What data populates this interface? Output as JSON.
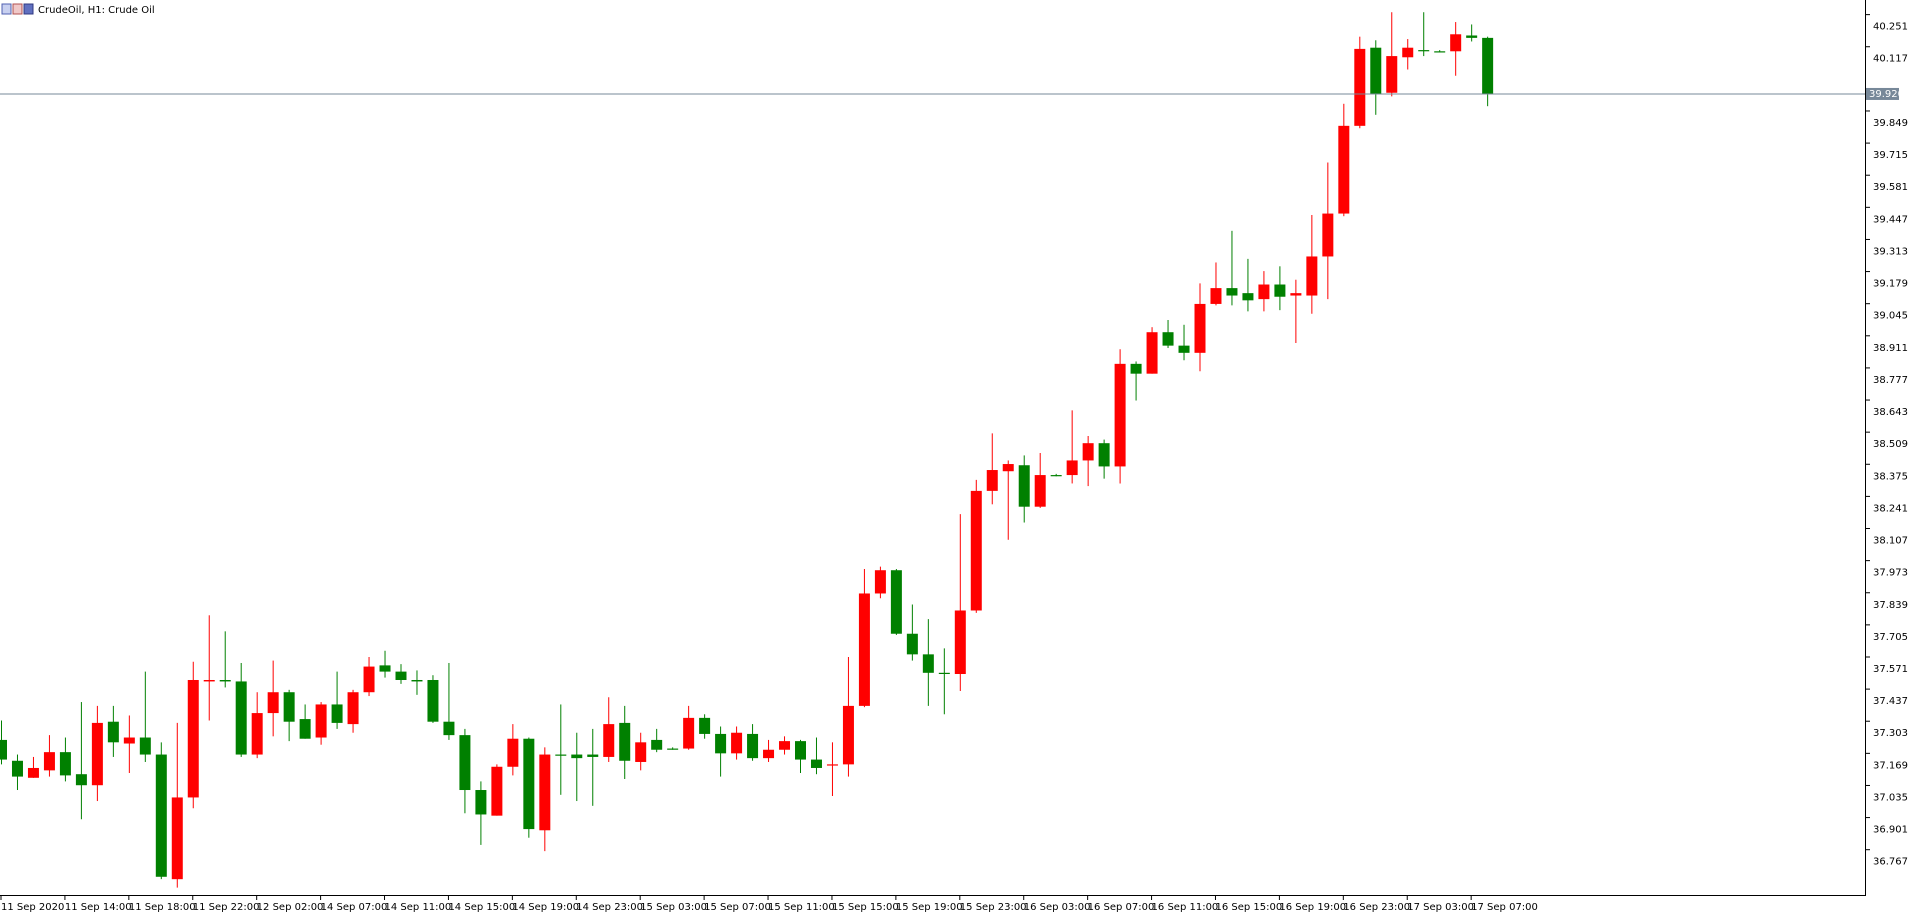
{
  "chart_data": {
    "type": "candlestick",
    "title": "CrudeOil, H1:  Crude Oil",
    "up_color": "#ff0000",
    "down_color": "#008000",
    "categories": [
      "11 Sep 2020",
      null,
      null,
      null,
      "11 Sep 14:00",
      null,
      null,
      null,
      "11 Sep 18:00",
      null,
      null,
      null,
      "11 Sep 22:00",
      null,
      null,
      null,
      "12 Sep 02:00",
      null,
      null,
      null,
      "14 Sep 07:00",
      null,
      null,
      null,
      "14 Sep 11:00",
      null,
      null,
      null,
      "14 Sep 15:00",
      null,
      null,
      null,
      "14 Sep 19:00",
      null,
      null,
      null,
      "14 Sep 23:00",
      null,
      null,
      null,
      "15 Sep 03:00",
      null,
      null,
      null,
      "15 Sep 07:00",
      null,
      null,
      null,
      "15 Sep 11:00",
      null,
      null,
      null,
      "15 Sep 15:00",
      null,
      null,
      null,
      "15 Sep 19:00",
      null,
      null,
      null,
      "15 Sep 23:00",
      null,
      null,
      null,
      "16 Sep 03:00",
      null,
      null,
      null,
      "16 Sep 07:00",
      null,
      null,
      null,
      "16 Sep 11:00",
      null,
      null,
      null,
      "16 Sep 15:00",
      null,
      null,
      null,
      "16 Sep 19:00",
      null,
      null,
      null,
      "16 Sep 23:00",
      null,
      null,
      null,
      "17 Sep 03:00",
      null,
      null,
      null,
      "17 Sep 07:00",
      null
    ],
    "open": [
      37.225,
      37.138,
      37.067,
      37.098,
      37.174,
      37.082,
      37.036,
      37.301,
      37.21,
      37.235,
      37.164,
      36.644,
      36.985,
      37.469,
      37.475,
      37.469,
      37.164,
      37.337,
      37.424,
      37.312,
      37.235,
      37.373,
      37.291,
      37.424,
      37.536,
      37.51,
      37.475,
      37.475,
      37.301,
      37.245,
      37.016,
      36.909,
      37.113,
      37.23,
      36.848,
      37.164,
      37.164,
      37.164,
      37.154,
      37.296,
      37.133,
      37.225,
      37.189,
      37.189,
      37.317,
      37.25,
      37.169,
      37.25,
      37.149,
      37.184,
      37.22,
      37.143,
      37.118,
      37.123,
      37.367,
      37.836,
      37.933,
      37.668,
      37.582,
      37.505,
      37.5,
      37.765,
      38.264,
      38.346,
      38.371,
      38.198,
      38.33,
      38.33,
      38.391,
      38.463,
      38.366,
      38.794,
      38.753,
      38.926,
      38.87,
      38.84,
      39.044,
      39.11,
      39.089,
      39.064,
      39.125,
      39.079,
      39.079,
      39.242,
      39.421,
      39.787,
      40.113,
      39.925,
      40.073,
      40.103,
      40.098,
      40.098,
      40.164,
      40.154
    ],
    "high": [
      37.306,
      37.164,
      37.154,
      37.245,
      37.235,
      37.383,
      37.367,
      37.367,
      37.327,
      37.51,
      37.215,
      37.296,
      37.551,
      37.745,
      37.678,
      37.546,
      37.424,
      37.556,
      37.434,
      37.373,
      37.383,
      37.51,
      37.434,
      37.571,
      37.597,
      37.541,
      37.515,
      37.495,
      37.546,
      37.271,
      37.052,
      37.123,
      37.291,
      37.235,
      37.194,
      37.373,
      37.255,
      37.271,
      37.403,
      37.367,
      37.255,
      37.271,
      37.194,
      37.367,
      37.332,
      37.281,
      37.281,
      37.291,
      37.225,
      37.24,
      37.225,
      37.235,
      37.215,
      37.571,
      37.938,
      37.948,
      37.938,
      37.79,
      37.729,
      37.607,
      38.167,
      38.31,
      38.504,
      38.391,
      38.412,
      38.422,
      38.335,
      38.6,
      38.493,
      38.478,
      38.855,
      38.804,
      38.947,
      38.977,
      38.957,
      39.13,
      39.217,
      39.349,
      39.232,
      39.181,
      39.201,
      39.145,
      39.415,
      39.634,
      39.879,
      40.159,
      40.144,
      40.261,
      40.149,
      40.261,
      40.103,
      40.22,
      40.21,
      40.159
    ],
    "low": [
      37.123,
      37.016,
      37.067,
      37.072,
      37.052,
      36.894,
      36.97,
      37.154,
      37.087,
      37.133,
      36.644,
      36.609,
      36.94,
      37.306,
      37.444,
      37.154,
      37.149,
      37.24,
      37.22,
      37.23,
      37.205,
      37.271,
      37.255,
      37.408,
      37.485,
      37.459,
      37.413,
      37.296,
      37.225,
      36.919,
      36.787,
      36.909,
      37.077,
      36.817,
      36.761,
      36.996,
      36.97,
      36.95,
      37.133,
      37.062,
      37.098,
      37.174,
      37.184,
      37.184,
      37.23,
      37.072,
      37.143,
      37.138,
      37.133,
      37.164,
      37.087,
      37.082,
      36.991,
      37.072,
      37.362,
      37.816,
      37.663,
      37.556,
      37.367,
      37.332,
      37.429,
      37.755,
      38.208,
      38.06,
      38.132,
      38.193,
      38.325,
      38.295,
      38.284,
      38.315,
      38.295,
      38.641,
      38.753,
      38.86,
      38.809,
      38.763,
      39.038,
      39.038,
      39.013,
      39.013,
      39.018,
      38.881,
      39.003,
      39.064,
      39.41,
      39.777,
      39.833,
      39.91,
      40.022,
      40.078,
      40.093,
      39.996,
      40.139,
      39.869
    ],
    "close": [
      37.143,
      37.072,
      37.108,
      37.174,
      37.077,
      37.036,
      37.296,
      37.215,
      37.235,
      37.164,
      36.654,
      36.985,
      37.475,
      37.475,
      37.469,
      37.164,
      37.337,
      37.424,
      37.301,
      37.23,
      37.373,
      37.296,
      37.424,
      37.531,
      37.51,
      37.475,
      37.469,
      37.301,
      37.245,
      37.016,
      36.914,
      37.113,
      37.23,
      36.853,
      37.164,
      37.159,
      37.149,
      37.154,
      37.291,
      37.138,
      37.215,
      37.184,
      37.184,
      37.317,
      37.25,
      37.169,
      37.255,
      37.149,
      37.184,
      37.22,
      37.143,
      37.108,
      37.123,
      37.367,
      37.836,
      37.933,
      37.668,
      37.582,
      37.505,
      37.5,
      37.765,
      38.264,
      38.351,
      38.376,
      38.198,
      38.33,
      38.325,
      38.391,
      38.463,
      38.366,
      38.794,
      38.753,
      38.926,
      38.87,
      38.84,
      39.044,
      39.11,
      39.079,
      39.059,
      39.125,
      39.074,
      39.089,
      39.242,
      39.421,
      39.787,
      40.108,
      39.92,
      40.078,
      40.113,
      40.098,
      40.093,
      40.169,
      40.154,
      39.92
    ],
    "current_price": {
      "value": 39.92,
      "label": "39.920"
    },
    "ylim": [
      36.578,
      40.312
    ],
    "yticks": [
      40.251,
      40.117,
      39.849,
      39.715,
      39.581,
      39.447,
      39.313,
      39.179,
      39.045,
      38.911,
      38.777,
      38.643,
      38.509,
      38.375,
      38.241,
      38.107,
      37.973,
      37.839,
      37.705,
      37.571,
      37.437,
      37.303,
      37.169,
      37.035,
      36.901,
      36.767
    ]
  }
}
